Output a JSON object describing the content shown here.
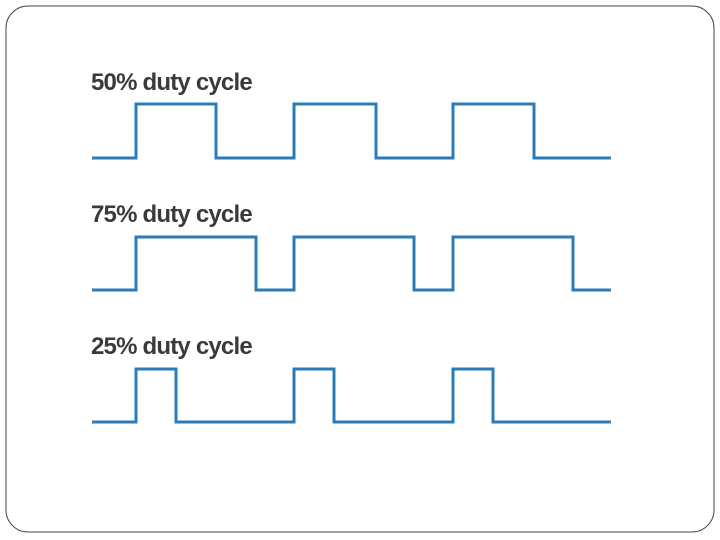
{
  "waveforms": [
    {
      "label": "50% duty cycle"
    },
    {
      "label": "75% duty cycle"
    },
    {
      "label": "25% duty cycle"
    }
  ]
}
